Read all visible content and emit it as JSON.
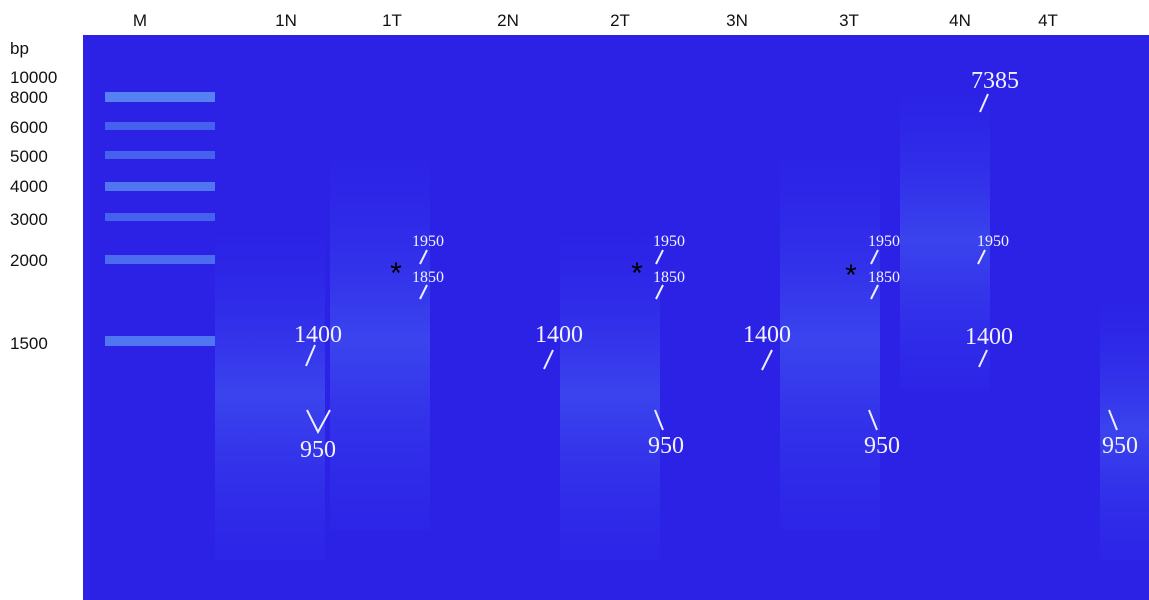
{
  "lanes": [
    "M",
    "1N",
    "1T",
    "2N",
    "2T",
    "3N",
    "3T",
    "4N",
    "4T"
  ],
  "ladder": {
    "unit": "bp",
    "sizes": [
      10000,
      8000,
      6000,
      5000,
      4000,
      3000,
      2000,
      1500
    ]
  },
  "annotations": [
    "1400",
    "950",
    "1950",
    "1850",
    "1400",
    "1950",
    "1850",
    "950",
    "1400",
    "1950",
    "1850",
    "950",
    "7385",
    "1950",
    "1400",
    "950"
  ],
  "asterisks": [
    "*",
    "*",
    "*"
  ]
}
